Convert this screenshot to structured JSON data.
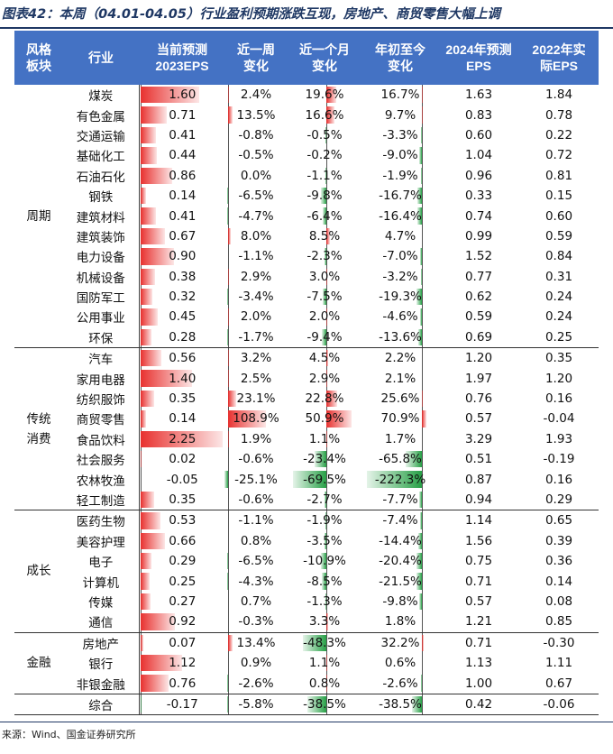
{
  "title": "图表42：本周（04.01-04.05）行业盈利预期涨跌互现，房地产、商贸零售大幅上调",
  "source": "来源：Wind、国金证券研究所",
  "headers": {
    "group": [
      "风格",
      "板块"
    ],
    "industry": "行业",
    "eps2023": [
      "当前预测",
      "2023EPS"
    ],
    "week": [
      "近一周",
      "变化"
    ],
    "month": [
      "近一个月",
      "变化"
    ],
    "ytd": [
      "年初至今",
      "变化"
    ],
    "eps2024": [
      "2024年预测",
      "EPS"
    ],
    "eps2022": [
      "2022年实",
      "际EPS"
    ]
  },
  "colors": {
    "header_bg": "#4472c4",
    "positive": "#e8312f",
    "negative": "#27a046"
  },
  "groups": [
    {
      "name": "周期",
      "rows": [
        {
          "industry": "煤炭",
          "eps": "1.60",
          "week": "2.4%",
          "month": "19.6%",
          "ytd": "16.7%",
          "eps24": "1.63",
          "eps22": "1.84"
        },
        {
          "industry": "有色金属",
          "eps": "0.71",
          "week": "13.5%",
          "month": "16.6%",
          "ytd": "9.7%",
          "eps24": "0.83",
          "eps22": "0.78"
        },
        {
          "industry": "交通运输",
          "eps": "0.41",
          "week": "-0.8%",
          "month": "-0.5%",
          "ytd": "-3.3%",
          "eps24": "0.60",
          "eps22": "0.22"
        },
        {
          "industry": "基础化工",
          "eps": "0.44",
          "week": "-0.5%",
          "month": "-0.2%",
          "ytd": "-9.0%",
          "eps24": "1.04",
          "eps22": "0.72"
        },
        {
          "industry": "石油石化",
          "eps": "0.86",
          "week": "0.0%",
          "month": "-1.1%",
          "ytd": "-1.9%",
          "eps24": "0.96",
          "eps22": "0.81"
        },
        {
          "industry": "钢铁",
          "eps": "0.14",
          "week": "-6.5%",
          "month": "-9.8%",
          "ytd": "-16.7%",
          "eps24": "0.33",
          "eps22": "0.15"
        },
        {
          "industry": "建筑材料",
          "eps": "0.41",
          "week": "-4.7%",
          "month": "-6.4%",
          "ytd": "-16.4%",
          "eps24": "0.74",
          "eps22": "0.60"
        },
        {
          "industry": "建筑装饰",
          "eps": "0.67",
          "week": "8.0%",
          "month": "8.5%",
          "ytd": "4.7%",
          "eps24": "0.99",
          "eps22": "0.59"
        },
        {
          "industry": "电力设备",
          "eps": "0.90",
          "week": "-1.1%",
          "month": "-2.3%",
          "ytd": "-7.0%",
          "eps24": "1.52",
          "eps22": "0.84"
        },
        {
          "industry": "机械设备",
          "eps": "0.38",
          "week": "2.9%",
          "month": "3.0%",
          "ytd": "-3.2%",
          "eps24": "0.77",
          "eps22": "0.31"
        },
        {
          "industry": "国防军工",
          "eps": "0.32",
          "week": "-3.4%",
          "month": "-7.5%",
          "ytd": "-19.3%",
          "eps24": "0.62",
          "eps22": "0.24"
        },
        {
          "industry": "公用事业",
          "eps": "0.45",
          "week": "2.0%",
          "month": "2.0%",
          "ytd": "-4.6%",
          "eps24": "0.59",
          "eps22": "0.24"
        },
        {
          "industry": "环保",
          "eps": "0.28",
          "week": "-1.7%",
          "month": "-9.4%",
          "ytd": "-13.6%",
          "eps24": "0.69",
          "eps22": "0.25"
        }
      ]
    },
    {
      "name": "传统消费",
      "rows": [
        {
          "industry": "汽车",
          "eps": "0.56",
          "week": "3.2%",
          "month": "4.5%",
          "ytd": "2.2%",
          "eps24": "1.20",
          "eps22": "0.35"
        },
        {
          "industry": "家用电器",
          "eps": "1.40",
          "week": "2.5%",
          "month": "2.9%",
          "ytd": "2.1%",
          "eps24": "1.97",
          "eps22": "1.20"
        },
        {
          "industry": "纺织服饰",
          "eps": "0.35",
          "week": "23.1%",
          "month": "22.8%",
          "ytd": "25.6%",
          "eps24": "0.76",
          "eps22": "0.16"
        },
        {
          "industry": "商贸零售",
          "eps": "0.14",
          "week": "108.9%",
          "month": "50.9%",
          "ytd": "70.9%",
          "eps24": "0.57",
          "eps22": "-0.04"
        },
        {
          "industry": "食品饮料",
          "eps": "2.25",
          "week": "1.9%",
          "month": "1.1%",
          "ytd": "1.7%",
          "eps24": "3.29",
          "eps22": "1.93"
        },
        {
          "industry": "社会服务",
          "eps": "0.02",
          "week": "-0.6%",
          "month": "-23.4%",
          "ytd": "-65.8%",
          "eps24": "0.51",
          "eps22": "-0.19"
        },
        {
          "industry": "农林牧渔",
          "eps": "-0.05",
          "week": "-25.1%",
          "month": "-69.5%",
          "ytd": "-222.3%",
          "eps24": "0.87",
          "eps22": "0.16"
        },
        {
          "industry": "轻工制造",
          "eps": "0.35",
          "week": "-0.6%",
          "month": "-2.7%",
          "ytd": "-7.7%",
          "eps24": "0.94",
          "eps22": "0.29"
        }
      ]
    },
    {
      "name": "成长",
      "rows": [
        {
          "industry": "医药生物",
          "eps": "0.53",
          "week": "-1.1%",
          "month": "-1.9%",
          "ytd": "-7.4%",
          "eps24": "1.14",
          "eps22": "0.65"
        },
        {
          "industry": "美容护理",
          "eps": "0.66",
          "week": "0.8%",
          "month": "-3.5%",
          "ytd": "-14.4%",
          "eps24": "1.56",
          "eps22": "0.39"
        },
        {
          "industry": "电子",
          "eps": "0.29",
          "week": "-6.5%",
          "month": "-10.9%",
          "ytd": "-20.4%",
          "eps24": "0.75",
          "eps22": "0.36"
        },
        {
          "industry": "计算机",
          "eps": "0.25",
          "week": "-4.3%",
          "month": "-8.5%",
          "ytd": "-21.5%",
          "eps24": "0.71",
          "eps22": "0.14"
        },
        {
          "industry": "传媒",
          "eps": "0.27",
          "week": "0.7%",
          "month": "-1.3%",
          "ytd": "-9.8%",
          "eps24": "0.57",
          "eps22": "0.08"
        },
        {
          "industry": "通信",
          "eps": "0.92",
          "week": "-0.3%",
          "month": "3.3%",
          "ytd": "1.8%",
          "eps24": "1.21",
          "eps22": "0.85"
        }
      ]
    },
    {
      "name": "金融",
      "rows": [
        {
          "industry": "房地产",
          "eps": "0.07",
          "week": "13.4%",
          "month": "-48.3%",
          "ytd": "32.2%",
          "eps24": "0.71",
          "eps22": "-0.30"
        },
        {
          "industry": "银行",
          "eps": "1.12",
          "week": "0.9%",
          "month": "1.1%",
          "ytd": "0.6%",
          "eps24": "1.13",
          "eps22": "1.11"
        },
        {
          "industry": "非银金融",
          "eps": "0.76",
          "week": "-2.6%",
          "month": "0.8%",
          "ytd": "-2.6%",
          "eps24": "1.00",
          "eps22": "0.67"
        }
      ]
    }
  ],
  "total": {
    "industry": "综合",
    "eps": "-0.17",
    "week": "-5.8%",
    "month": "-38.5%",
    "ytd": "-38.5%",
    "eps24": "0.42",
    "eps22": "-0.06"
  }
}
